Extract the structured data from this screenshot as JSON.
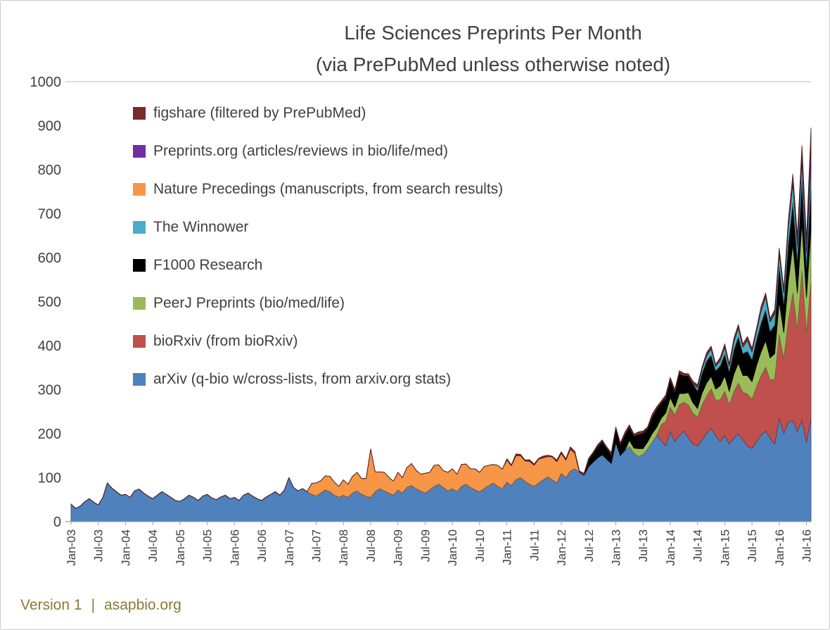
{
  "title": {
    "line1": "Life Sciences Preprints Per Month",
    "line2": "(via PrePubMed unless otherwise noted)"
  },
  "footer": {
    "version": "Version 1",
    "separator": "|",
    "site": "asapbio.org"
  },
  "chart_data": {
    "type": "area",
    "stacked": true,
    "title": "Life Sciences Preprints Per Month",
    "subtitle": "(via PrePubMed unless otherwise noted)",
    "x_unit": "month",
    "x_start": "Jan-03",
    "x_end": "Aug-16",
    "n_months": 164,
    "x_tick_every": 6,
    "x_tick_labels": [
      "Jan-03",
      "Jul-03",
      "Jan-04",
      "Jul-04",
      "Jan-05",
      "Jul-05",
      "Jan-06",
      "Jul-06",
      "Jan-07",
      "Jul-07",
      "Jan-08",
      "Jul-08",
      "Jan-09",
      "Jul-09",
      "Jan-10",
      "Jul-10",
      "Jan-11",
      "Jul-11",
      "Jan-12",
      "Jul-12",
      "Jan-13",
      "Jul-13",
      "Jan-14",
      "Jul-14",
      "Jan-15",
      "Jul-15",
      "Jan-16",
      "Jul-16"
    ],
    "ylim": [
      0,
      1000
    ],
    "y_ticks": [
      0,
      100,
      200,
      300,
      400,
      500,
      600,
      700,
      800,
      900,
      1000
    ],
    "grid": "top-line-only",
    "legend_position": "inside-top-left",
    "series": [
      {
        "name": "arXiv",
        "legend_label": "arXiv (q-bio w/cross-lists, from arxiv.org stats)",
        "color": "#4F81BD",
        "start_index": 0,
        "values": [
          40,
          30,
          35,
          45,
          52,
          44,
          38,
          55,
          88,
          76,
          68,
          60,
          62,
          55,
          70,
          74,
          65,
          58,
          52,
          60,
          68,
          62,
          55,
          48,
          46,
          52,
          60,
          55,
          48,
          58,
          62,
          54,
          50,
          56,
          60,
          52,
          55,
          48,
          60,
          65,
          58,
          52,
          48,
          56,
          62,
          68,
          60,
          72,
          100,
          78,
          70,
          75,
          68,
          62,
          58,
          65,
          72,
          68,
          60,
          55,
          60,
          55,
          65,
          70,
          62,
          58,
          55,
          68,
          75,
          70,
          65,
          60,
          72,
          65,
          78,
          82,
          75,
          70,
          65,
          72,
          80,
          85,
          78,
          70,
          75,
          68,
          80,
          85,
          78,
          72,
          68,
          75,
          82,
          88,
          80,
          75,
          90,
          82,
          95,
          100,
          92,
          85,
          80,
          88,
          95,
          102,
          95,
          88,
          110,
          100,
          115,
          120,
          112,
          105,
          125,
          135,
          145,
          152,
          142,
          132,
          180,
          150,
          162,
          170,
          155,
          148,
          152,
          165,
          180,
          196,
          185,
          172,
          205,
          182,
          196,
          206,
          190,
          176,
          172,
          186,
          200,
          212,
          196,
          182,
          196,
          176,
          190,
          200,
          186,
          172,
          166,
          182,
          196,
          206,
          190,
          176,
          235,
          200,
          225,
          230,
          205,
          230,
          180,
          235
        ]
      },
      {
        "name": "bioRxiv",
        "legend_label": "bioRxiv (from bioRxiv)",
        "color": "#C0504D",
        "start_index": 130,
        "values": [
          35,
          55,
          55,
          60,
          70,
          65,
          75,
          70,
          65,
          80,
          85,
          90,
          80,
          95,
          100,
          90,
          105,
          115,
          108,
          118,
          112,
          125,
          135,
          145,
          132,
          148,
          190,
          170,
          230,
          290,
          230,
          340,
          250,
          310
        ]
      },
      {
        "name": "PeerJ Preprints",
        "legend_label": "PeerJ Preprints (bio/med/life)",
        "color": "#9BBB59",
        "start_index": 123,
        "values": [
          15,
          12,
          18,
          14,
          16,
          20,
          18,
          15,
          20,
          22,
          18,
          25,
          20,
          28,
          24,
          20,
          26,
          30,
          28,
          25,
          32,
          35,
          30,
          40,
          45,
          38,
          42,
          40,
          48,
          55,
          60,
          50,
          58,
          75,
          60,
          90,
          110,
          85,
          110,
          80,
          120
        ]
      },
      {
        "name": "F1000 Research",
        "legend_label": "F1000 Research",
        "color": "#000000",
        "start_index": 114,
        "values": [
          15,
          20,
          25,
          30,
          25,
          20,
          30,
          25,
          35,
          30,
          28,
          32,
          35,
          30,
          38,
          42,
          35,
          35,
          40,
          35,
          45,
          40,
          38,
          42,
          40,
          45,
          50,
          48,
          42,
          45,
          50,
          45,
          55,
          60,
          50,
          55,
          50,
          58,
          65,
          70,
          60,
          65,
          80,
          65,
          85,
          95,
          75,
          95,
          70,
          95
        ]
      },
      {
        "name": "The Winnower",
        "legend_label": "The Winnower",
        "color": "#4BACC6",
        "start_index": 138,
        "values": [
          8,
          10,
          12,
          15,
          10,
          12,
          15,
          12,
          18,
          20,
          15,
          25,
          18,
          20,
          28,
          30,
          22,
          25,
          30,
          25,
          40,
          45,
          30,
          45,
          30,
          45
        ]
      },
      {
        "name": "Nature Precedings",
        "legend_label": "Nature Precedings (manuscripts, from search results)",
        "color": "#F79646",
        "start_index": 53,
        "values": [
          25,
          30,
          28,
          32,
          35,
          30,
          25,
          35,
          30,
          38,
          42,
          36,
          40,
          110,
          45,
          38,
          42,
          36,
          32,
          40,
          35,
          45,
          50,
          42,
          38,
          45,
          40,
          48,
          44,
          38,
          42,
          45,
          40,
          50,
          46,
          42,
          48,
          44,
          50,
          46,
          42,
          48,
          44,
          50,
          45,
          55,
          50,
          46,
          52,
          48,
          54,
          50,
          46,
          52,
          48,
          45,
          40,
          50,
          35
        ]
      },
      {
        "name": "Preprints.org",
        "legend_label": "Preprints.org (articles/reviews in bio/life/med)",
        "color": "#7030A0",
        "start_index": 160,
        "values": [
          10,
          15,
          20,
          40
        ]
      },
      {
        "name": "figshare",
        "legend_label": "figshare (filtered by PrePubMed)",
        "color": "#772C2A",
        "start_index": 96,
        "values": [
          3,
          2,
          4,
          3,
          2,
          4,
          3,
          2,
          4,
          3,
          2,
          4,
          4,
          3,
          5,
          4,
          3,
          5,
          4,
          3,
          5,
          4,
          3,
          5,
          5,
          4,
          6,
          5,
          4,
          6,
          5,
          4,
          6,
          5,
          4,
          6,
          6,
          5,
          7,
          6,
          5,
          7,
          6,
          5,
          7,
          6,
          5,
          7,
          8,
          6,
          9,
          8,
          7,
          9,
          8,
          7,
          10,
          9,
          8,
          10,
          12,
          10,
          15,
          20,
          15,
          20,
          12,
          50
        ]
      }
    ]
  }
}
